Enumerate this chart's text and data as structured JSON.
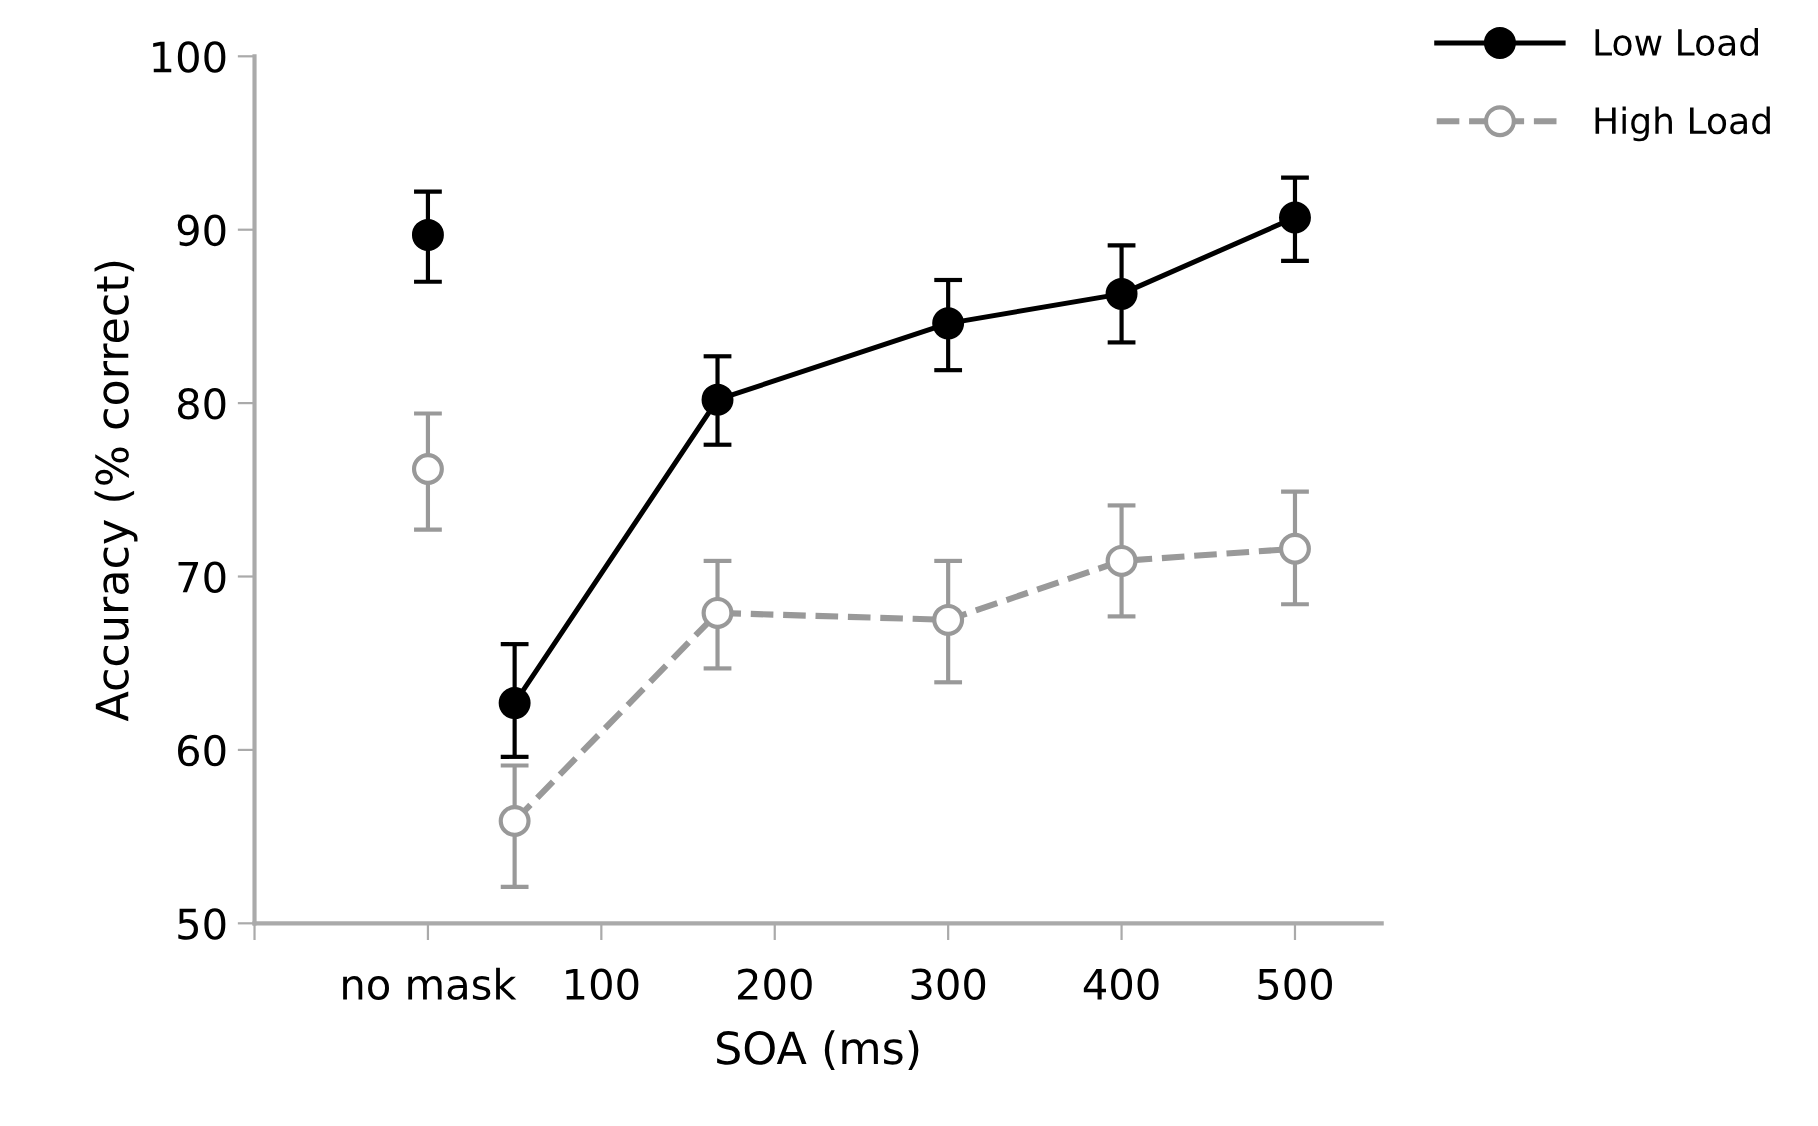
{
  "chart_data": {
    "type": "line",
    "xlabel": "SOA (ms)",
    "ylabel": "Accuracy (% correct)",
    "xlim": [
      -100,
      550
    ],
    "xticks": [
      {
        "value": -100,
        "label": null
      },
      {
        "value": 0,
        "label": "no mask"
      },
      100,
      200,
      300,
      400,
      500
    ],
    "ylim": [
      50,
      100
    ],
    "yticks": [
      50,
      60,
      70,
      80,
      90,
      100
    ],
    "grid": false,
    "legend": "top right",
    "marker": "circle",
    "series": [
      {
        "name": "Low Load",
        "color": "#000000",
        "line_style": "solid",
        "x": [
          0,
          25,
          50,
          167,
          300,
          400,
          500
        ],
        "values": [
          89.7,
          null,
          62.7,
          80.2,
          84.6,
          86.3,
          90.7
        ],
        "errors": [
          [
            87.0,
            92.2
          ],
          null,
          [
            59.6,
            66.1
          ],
          [
            77.6,
            82.7
          ],
          [
            81.9,
            87.1
          ],
          [
            83.5,
            89.1
          ],
          [
            88.2,
            93.0
          ]
        ]
      },
      {
        "name": "High Load",
        "color": "#999999",
        "line_style": "dashed",
        "x": [
          0,
          25,
          50,
          167,
          300,
          400,
          500
        ],
        "values": [
          76.2,
          null,
          55.9,
          67.9,
          67.5,
          70.9,
          71.6
        ],
        "errors": [
          [
            72.7,
            79.4
          ],
          null,
          [
            52.1,
            59.1
          ],
          [
            64.7,
            70.9
          ],
          [
            63.9,
            70.9
          ],
          [
            67.7,
            74.1
          ],
          [
            68.4,
            74.9
          ]
        ]
      }
    ]
  }
}
